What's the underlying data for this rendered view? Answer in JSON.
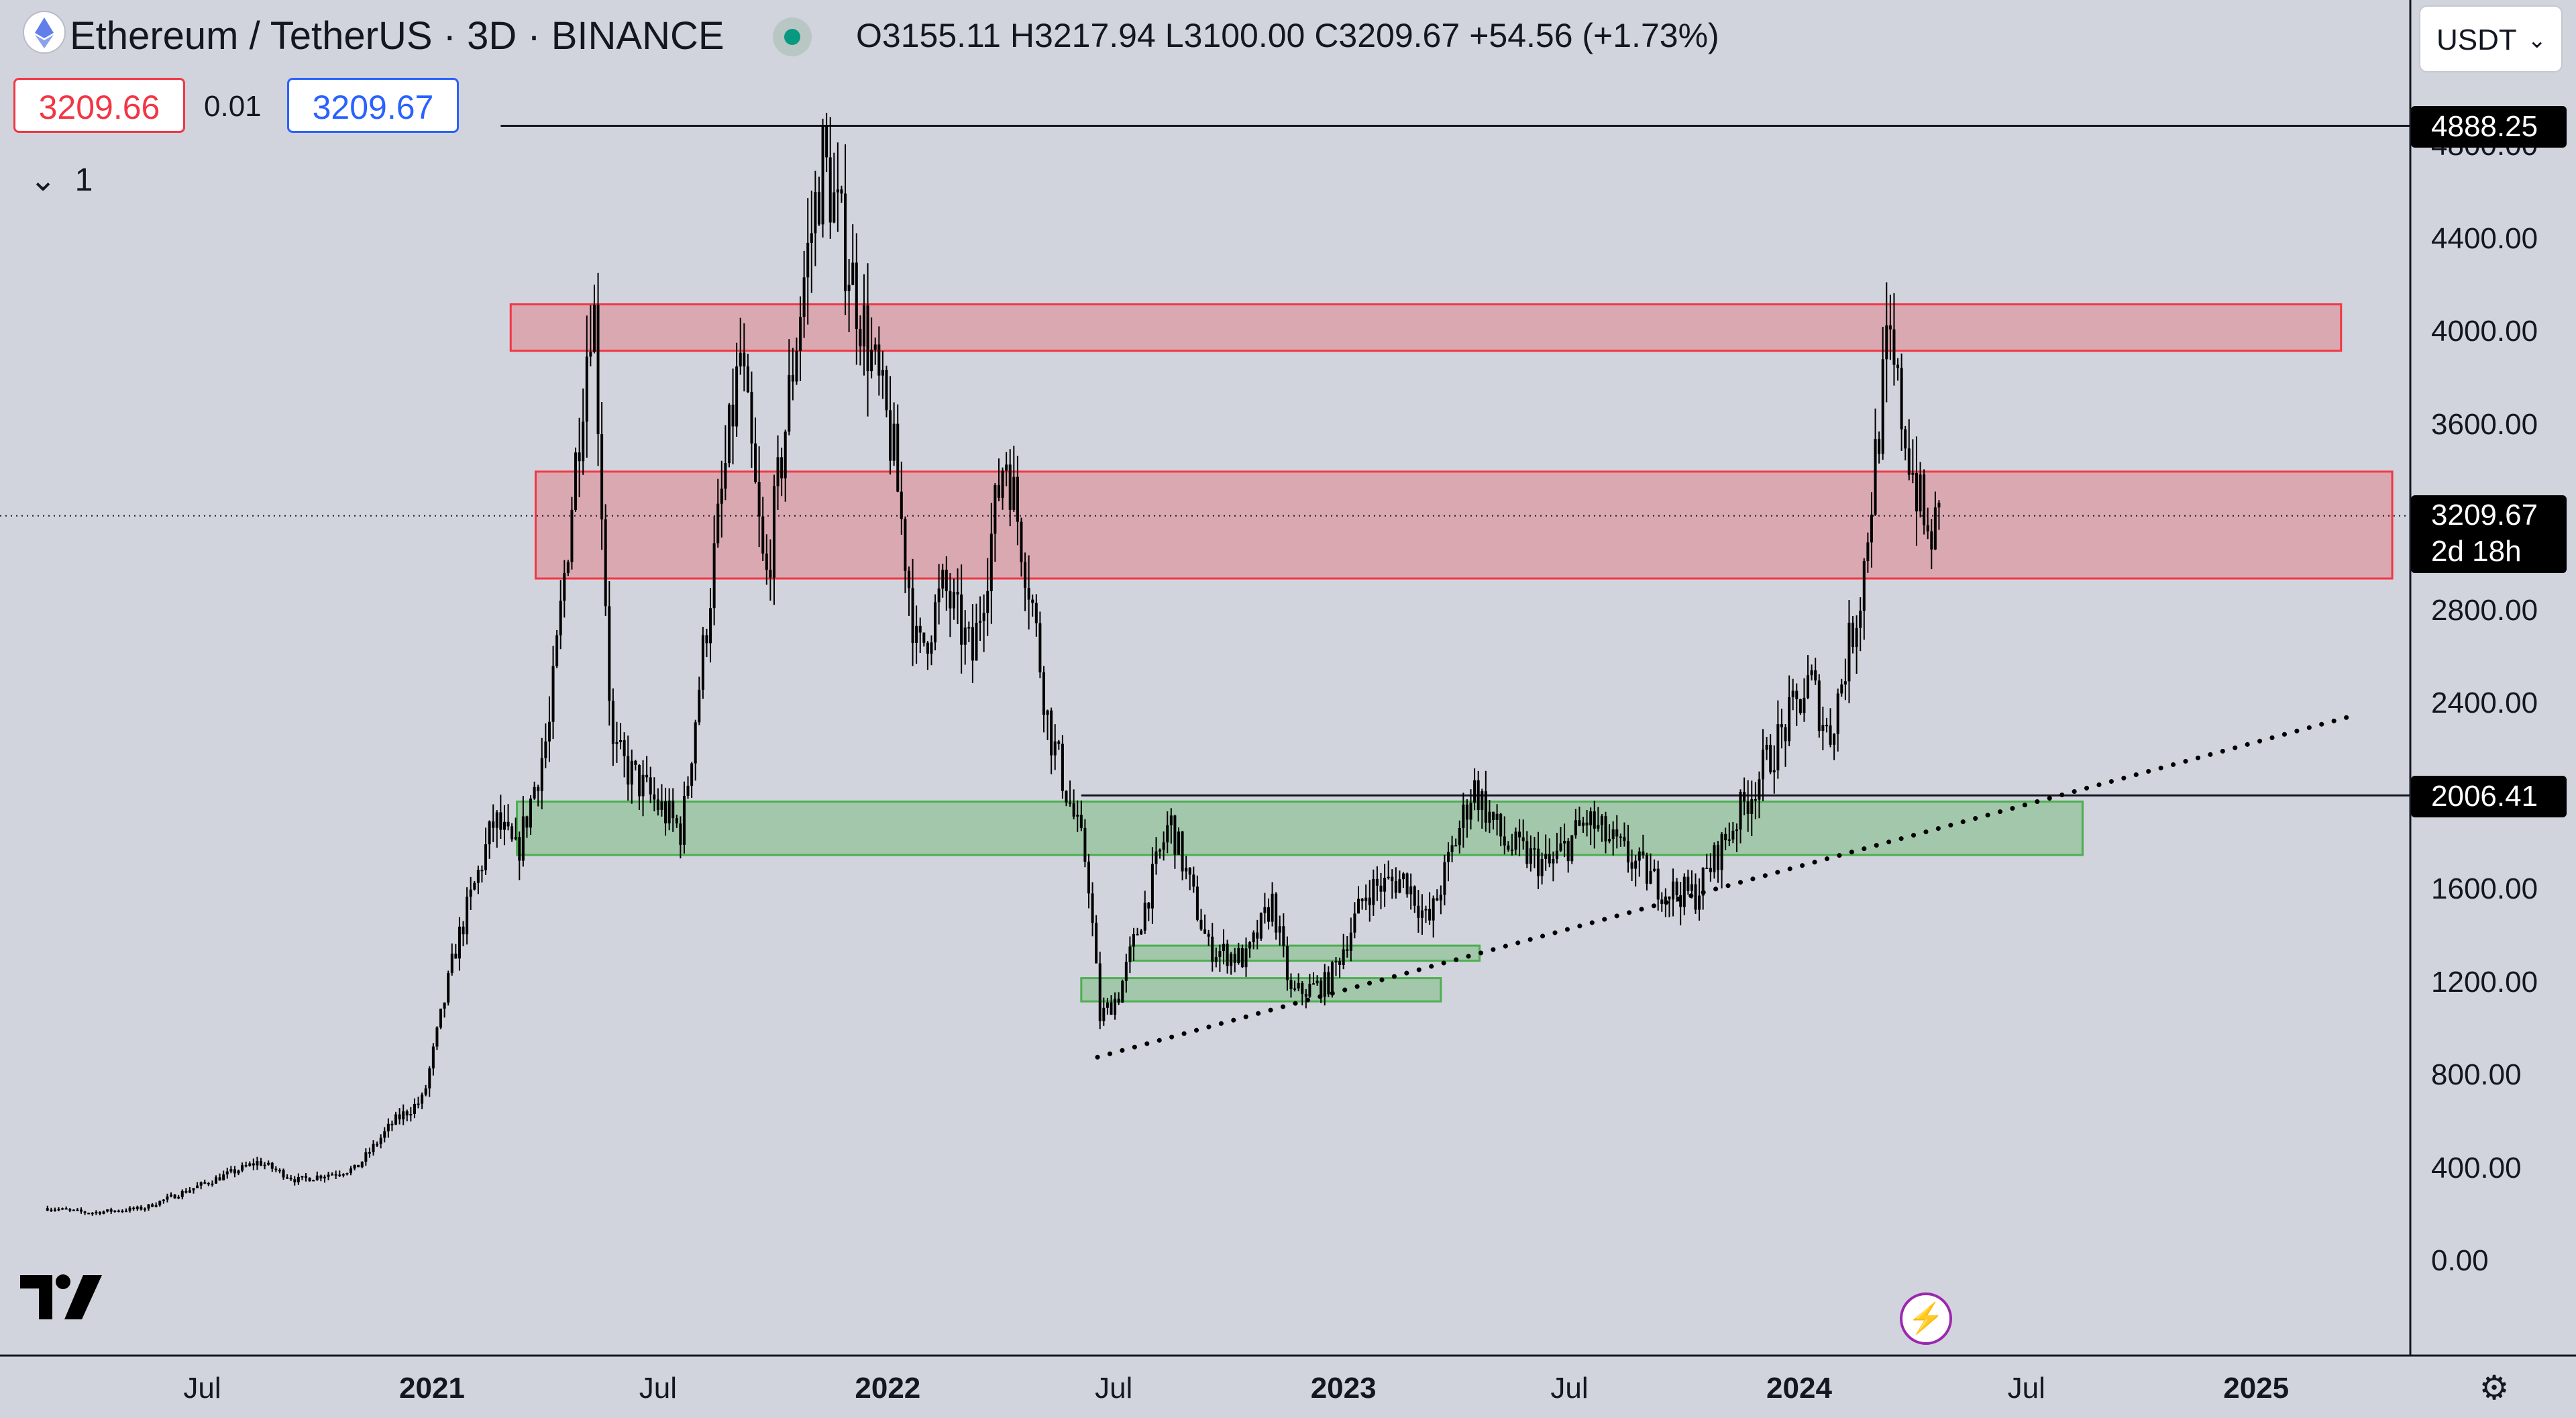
{
  "header": {
    "title": "Ethereum / TetherUS · 3D · BINANCE",
    "ohlc": {
      "open": "O3155.11",
      "high": "H3217.94",
      "low": "L3100.00",
      "close": "C3209.67",
      "change": "+54.56 (+1.73%)"
    }
  },
  "trade": {
    "sell_price": "3209.66",
    "spread": "0.01",
    "buy_price": "3209.67"
  },
  "indicator_toggle": {
    "icon": "chevron-down-icon",
    "count": "1"
  },
  "currency_select": {
    "value": "USDT"
  },
  "price_tags": {
    "high_line": "4888.25",
    "current_price": "3209.67",
    "countdown": "2d 18h",
    "support_line": "2006.41"
  },
  "colors": {
    "background": "#d1d4dc",
    "resistance_zone": "#f23645",
    "support_zone": "#4caf50",
    "candle": "#000000"
  },
  "chart_data": {
    "type": "candlestick",
    "symbol": "ETHUSDT",
    "timeframe": "3D",
    "exchange": "BINANCE",
    "y_ticks": [
      4800,
      4400,
      4000,
      3600,
      2800,
      2400,
      1600,
      1200,
      800,
      400,
      0
    ],
    "y_tick_labels": [
      "4800.00",
      "4400.00",
      "4000.00",
      "3600.00",
      "2800.00",
      "2400.00",
      "1600.00",
      "1200.00",
      "800.00",
      "400.00",
      "0.00"
    ],
    "ylim": [
      -200,
      5100
    ],
    "x_ticks": [
      {
        "label": "Jul",
        "date": "2020-07-01",
        "bold": false
      },
      {
        "label": "2021",
        "date": "2021-01-01",
        "bold": true
      },
      {
        "label": "Jul",
        "date": "2021-07-01",
        "bold": false
      },
      {
        "label": "2022",
        "date": "2022-01-01",
        "bold": true
      },
      {
        "label": "Jul",
        "date": "2022-07-01",
        "bold": false
      },
      {
        "label": "2023",
        "date": "2023-01-01",
        "bold": true
      },
      {
        "label": "Jul",
        "date": "2023-07-01",
        "bold": false
      },
      {
        "label": "2024",
        "date": "2024-01-01",
        "bold": true
      },
      {
        "label": "Jul",
        "date": "2024-07-01",
        "bold": false
      },
      {
        "label": "2025",
        "date": "2025-01-01",
        "bold": true
      }
    ],
    "price_path": [
      [
        "2020-03-01",
        230
      ],
      [
        "2020-04-01",
        210
      ],
      [
        "2020-05-15",
        230
      ],
      [
        "2020-08-15",
        430
      ],
      [
        "2020-09-15",
        350
      ],
      [
        "2020-11-01",
        400
      ],
      [
        "2020-12-01",
        600
      ],
      [
        "2020-12-25",
        700
      ],
      [
        "2021-01-20",
        1350
      ],
      [
        "2021-02-20",
        1900
      ],
      [
        "2021-03-10",
        1750
      ],
      [
        "2021-04-05",
        2300
      ],
      [
        "2021-05-10",
        4200
      ],
      [
        "2021-05-25",
        2200
      ],
      [
        "2021-06-25",
        2000
      ],
      [
        "2021-07-20",
        1850
      ],
      [
        "2021-08-20",
        3250
      ],
      [
        "2021-09-05",
        3900
      ],
      [
        "2021-09-25",
        2900
      ],
      [
        "2021-10-25",
        4200
      ],
      [
        "2021-11-10",
        4750
      ],
      [
        "2021-12-05",
        4200
      ],
      [
        "2022-01-05",
        3500
      ],
      [
        "2022-01-25",
        2600
      ],
      [
        "2022-02-15",
        2900
      ],
      [
        "2022-03-10",
        2600
      ],
      [
        "2022-04-05",
        3500
      ],
      [
        "2022-04-25",
        2900
      ],
      [
        "2022-05-10",
        2300
      ],
      [
        "2022-06-10",
        1700
      ],
      [
        "2022-06-20",
        1050
      ],
      [
        "2022-07-05",
        1150
      ],
      [
        "2022-08-15",
        1900
      ],
      [
        "2022-09-15",
        1350
      ],
      [
        "2022-10-15",
        1300
      ],
      [
        "2022-11-05",
        1550
      ],
      [
        "2022-11-20",
        1150
      ],
      [
        "2022-12-20",
        1200
      ],
      [
        "2023-01-20",
        1600
      ],
      [
        "2023-02-20",
        1650
      ],
      [
        "2023-03-10",
        1450
      ],
      [
        "2023-04-15",
        2050
      ],
      [
        "2023-05-10",
        1800
      ],
      [
        "2023-06-15",
        1700
      ],
      [
        "2023-07-15",
        1900
      ],
      [
        "2023-08-15",
        1750
      ],
      [
        "2023-09-15",
        1600
      ],
      [
        "2023-10-10",
        1580
      ],
      [
        "2023-11-01",
        1800
      ],
      [
        "2023-12-01",
        2100
      ],
      [
        "2024-01-10",
        2500
      ],
      [
        "2024-01-25",
        2250
      ],
      [
        "2024-02-20",
        2900
      ],
      [
        "2024-03-12",
        3950
      ],
      [
        "2024-04-01",
        3400
      ],
      [
        "2024-04-13",
        3100
      ],
      [
        "2024-04-24",
        3210
      ]
    ],
    "annotations": {
      "resistance_zones": [
        {
          "from": "2021-03-05",
          "to": "2025-03-10",
          "low": 3920,
          "high": 4120
        },
        {
          "from": "2021-03-25",
          "to": "2025-04-20",
          "low": 2940,
          "high": 3400
        }
      ],
      "support_zones": [
        {
          "from": "2021-03-10",
          "to": "2024-08-15",
          "low": 1750,
          "high": 1980
        },
        {
          "from": "2022-07-15",
          "to": "2023-04-20",
          "low": 1295,
          "high": 1360
        },
        {
          "from": "2022-06-05",
          "to": "2023-03-20",
          "low": 1120,
          "high": 1220
        }
      ],
      "horizontal_lines": [
        {
          "price": 4888.25,
          "from": "2021-02-25"
        },
        {
          "price": 2006.41,
          "from": "2022-06-05"
        }
      ],
      "trendline": {
        "from": [
          "2022-06-18",
          880
        ],
        "to": [
          "2025-03-20",
          2350
        ],
        "style": "dotted"
      },
      "current_price_line": {
        "price": 3209.67,
        "style": "dotted"
      }
    }
  }
}
